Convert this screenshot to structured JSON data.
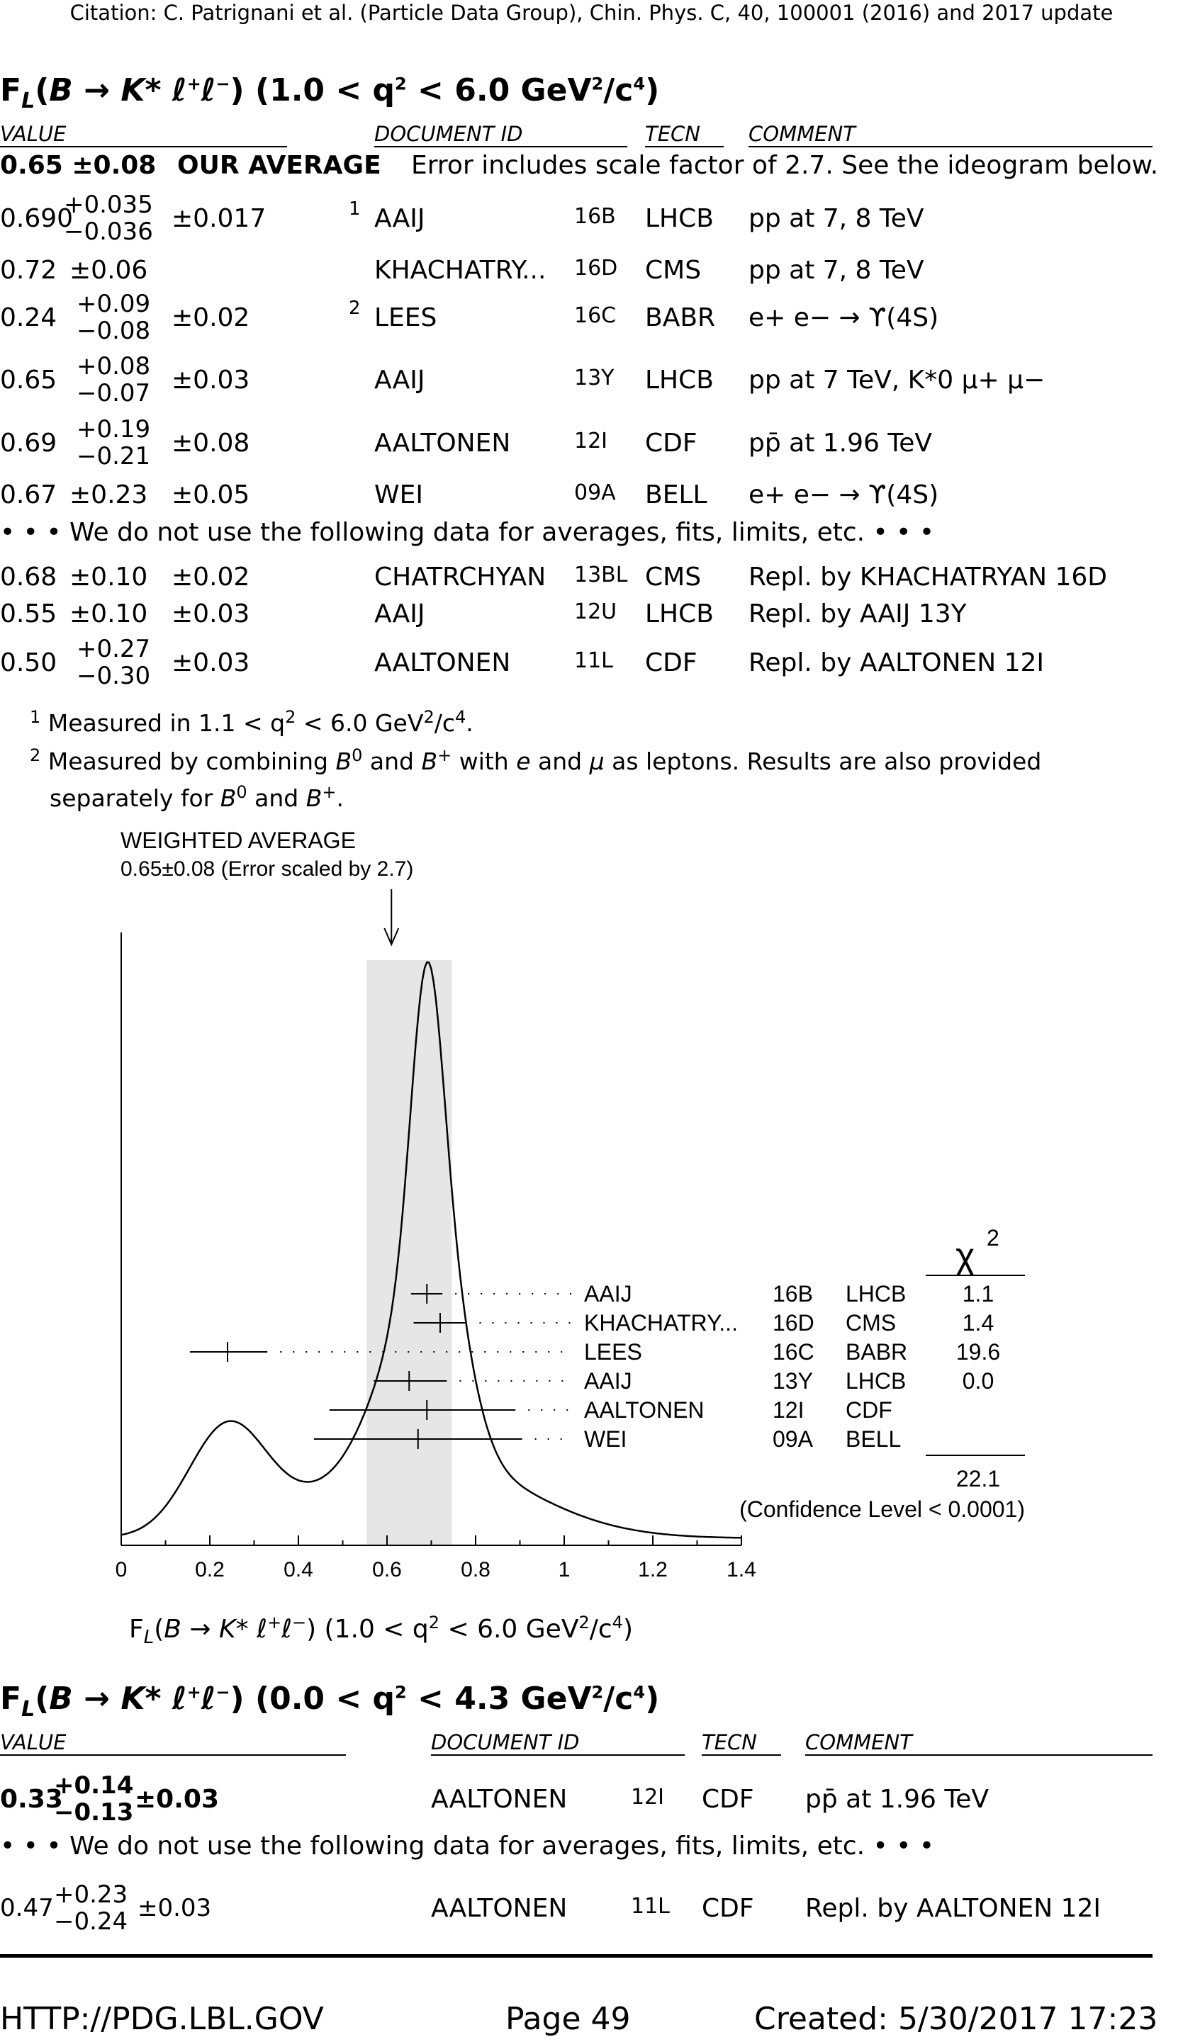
{
  "citation": "Citation: C. Patrignani et al. (Particle Data Group), Chin. Phys. C, 40, 100001 (2016) and 2017 update",
  "section1": {
    "title": "F_L(B → K* ℓ+ ℓ−) (1.0 < q2 < 6.0 GeV2/c4)",
    "headers": {
      "value": "VALUE",
      "document_id": "DOCUMENT ID",
      "tecn": "TECN",
      "comment": "COMMENT"
    },
    "our_average": {
      "value": "0.65 ±0.08",
      "label": "OUR AVERAGE",
      "comment": "Error includes scale factor of 2.7. See the ideogram below."
    },
    "rows": [
      {
        "value": "0.690",
        "plus": "+0.035",
        "minus": "−0.036",
        "syst": "±0.017",
        "note": "1",
        "doc": "AAIJ",
        "year": "16B",
        "tecn": "LHCB",
        "comment": "pp at 7, 8 TeV"
      },
      {
        "value": "0.72",
        "plus": "",
        "minus": "",
        "stat": "±0.06",
        "syst": "",
        "note": "",
        "doc": "KHACHATRY...",
        "year": "16D",
        "tecn": "CMS",
        "comment": "pp at 7, 8 TeV"
      },
      {
        "value": "0.24",
        "plus": "+0.09",
        "minus": "−0.08",
        "syst": "±0.02",
        "note": "2",
        "doc": "LEES",
        "year": "16C",
        "tecn": "BABR",
        "comment": "e+ e− → ϒ(4S)"
      },
      {
        "value": "0.65",
        "plus": "+0.08",
        "minus": "−0.07",
        "syst": "±0.03",
        "note": "",
        "doc": "AAIJ",
        "year": "13Y",
        "tecn": "LHCB",
        "comment": "pp at 7 TeV, K*0 μ+ μ−"
      },
      {
        "value": "0.69",
        "plus": "+0.19",
        "minus": "−0.21",
        "syst": "±0.08",
        "note": "",
        "doc": "AALTONEN",
        "year": "12I",
        "tecn": "CDF",
        "comment": "pp̄ at 1.96 TeV"
      },
      {
        "value": "0.67",
        "plus": "",
        "minus": "",
        "stat": "±0.23",
        "syst": "±0.05",
        "note": "",
        "doc": "WEI",
        "year": "09A",
        "tecn": "BELL",
        "comment": "e+ e− → ϒ(4S)"
      }
    ],
    "not_used_text": "• • • We do not use the following data for averages, fits, limits, etc. • • •",
    "unused_rows": [
      {
        "value": "0.68",
        "plus": "",
        "minus": "",
        "stat": "±0.10",
        "syst": "±0.02",
        "doc": "CHATRCHYAN",
        "year": "13BL",
        "tecn": "CMS",
        "comment": "Repl. by KHACHATRYAN 16D"
      },
      {
        "value": "0.55",
        "plus": "",
        "minus": "",
        "stat": "±0.10",
        "syst": "±0.03",
        "doc": "AAIJ",
        "year": "12U",
        "tecn": "LHCB",
        "comment": "Repl. by AAIJ 13Y"
      },
      {
        "value": "0.50",
        "plus": "+0.27",
        "minus": "−0.30",
        "syst": "±0.03",
        "doc": "AALTONEN",
        "year": "11L",
        "tecn": "CDF",
        "comment": "Repl. by AALTONEN 12I"
      }
    ],
    "footnotes": [
      {
        "num": "1",
        "text": "Measured in 1.1 < q2 < 6.0 GeV2/c4."
      },
      {
        "num": "2",
        "text": "Measured by combining B0 and B+ with e and μ as leptons. Results are also provided separately for B0 and B+."
      }
    ]
  },
  "ideogram": {
    "title": "WEIGHTED AVERAGE",
    "subtitle": "0.65±0.08 (Error scaled by 2.7)",
    "chi2_header": "χ2",
    "chi2_total": "22.1",
    "confidence": "(Confidence Level < 0.0001)",
    "x_axis_label": "F_L(B → K* ℓ+ ℓ−) (1.0 < q2 < 6.0 GeV2/c4)"
  },
  "chart_data": {
    "type": "scatter",
    "title": "WEIGHTED AVERAGE",
    "xlim": [
      0,
      1.4
    ],
    "xticks": [
      "0",
      "0.2",
      "0.4",
      "0.6",
      "0.8",
      "1",
      "1.2",
      "1.4"
    ],
    "average": 0.65,
    "average_error": 0.08,
    "series": [
      {
        "name": "AAIJ",
        "year": "16B",
        "tecn": "LHCB",
        "x": 0.69,
        "err_lo": 0.036,
        "err_hi": 0.035,
        "chi2": "1.1"
      },
      {
        "name": "KHACHATRY...",
        "year": "16D",
        "tecn": "CMS",
        "x": 0.72,
        "err_lo": 0.06,
        "err_hi": 0.06,
        "chi2": "1.4"
      },
      {
        "name": "LEES",
        "year": "16C",
        "tecn": "BABR",
        "x": 0.24,
        "err_lo": 0.085,
        "err_hi": 0.09,
        "chi2": "19.6"
      },
      {
        "name": "AAIJ",
        "year": "13Y",
        "tecn": "LHCB",
        "x": 0.65,
        "err_lo": 0.08,
        "err_hi": 0.085,
        "chi2": "0.0"
      },
      {
        "name": "AALTONEN",
        "year": "12I",
        "tecn": "CDF",
        "x": 0.69,
        "err_lo": 0.22,
        "err_hi": 0.2,
        "chi2": ""
      },
      {
        "name": "WEI",
        "year": "09A",
        "tecn": "BELL",
        "x": 0.67,
        "err_lo": 0.235,
        "err_hi": 0.235,
        "chi2": ""
      }
    ]
  },
  "section2": {
    "title": "F_L(B → K* ℓ+ ℓ−) (0.0 < q2 < 4.3 GeV2/c4)",
    "headers": {
      "value": "VALUE",
      "document_id": "DOCUMENT ID",
      "tecn": "TECN",
      "comment": "COMMENT"
    },
    "row": {
      "value": "0.33",
      "plus": "+0.14",
      "minus": "−0.13",
      "syst": "±0.03",
      "doc": "AALTONEN",
      "year": "12I",
      "tecn": "CDF",
      "comment": "pp̄ at 1.96 TeV"
    },
    "not_used_text": "• • • We do not use the following data for averages, fits, limits, etc. • • •",
    "unused_row": {
      "value": "0.47",
      "plus": "+0.23",
      "minus": "−0.24",
      "syst": "±0.03",
      "doc": "AALTONEN",
      "year": "11L",
      "tecn": "CDF",
      "comment": "Repl. by AALTONEN 12I"
    }
  },
  "footer": {
    "url": "HTTP://PDG.LBL.GOV",
    "page": "Page 49",
    "created": "Created: 5/30/2017 17:23"
  }
}
